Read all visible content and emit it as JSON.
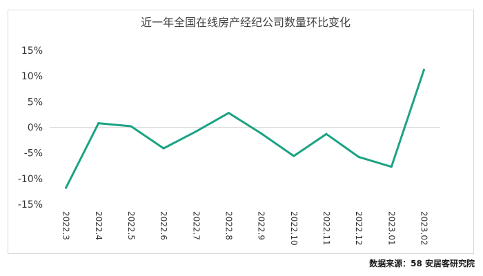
{
  "chart_data": {
    "type": "line",
    "title": "近一年全国在线房产经纪公司数量环比变化",
    "xlabel": "",
    "ylabel": "",
    "categories": [
      "2022.3",
      "2022.4",
      "2022.5",
      "2022.6",
      "2022.7",
      "2022.8",
      "2022.9",
      "2022.10",
      "2022.11",
      "2022.12",
      "2023.01",
      "2023.02"
    ],
    "series": [
      {
        "values": [
          -11.8,
          0.8,
          0.2,
          -4.1,
          -0.8,
          2.8,
          -1.2,
          -5.6,
          -1.3,
          -5.8,
          -7.7,
          11.2
        ]
      }
    ],
    "ylim": [
      -15,
      15
    ],
    "yticks": [
      15,
      10,
      5,
      0,
      -5,
      -10,
      -15
    ],
    "ytick_labels": [
      "15%",
      "10%",
      "5%",
      "0%",
      "-5%",
      "-10%",
      "-15%"
    ],
    "grid": false,
    "zero_line": true,
    "legend": "none",
    "line_color": "#1aa383",
    "zero_line_color": "#d9d9d9"
  },
  "source": "数据来源：58 安居客研究院"
}
